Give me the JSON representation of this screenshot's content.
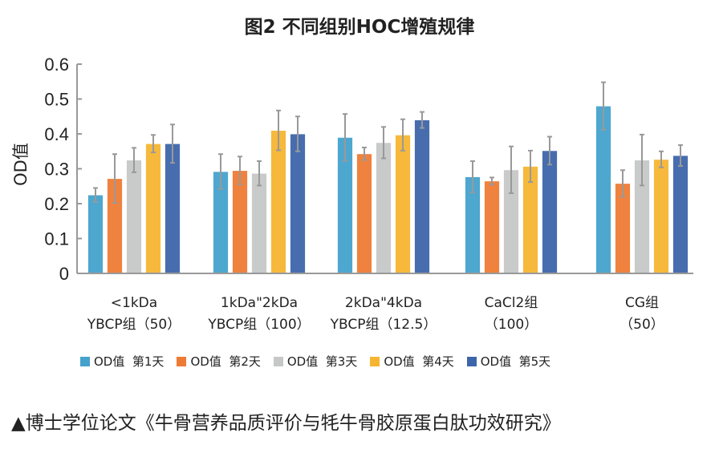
{
  "chart_data": {
    "type": "bar",
    "title": "图2 不同组别HOC增殖规律",
    "xlabel": "",
    "ylabel": "OD值",
    "ylim": [
      0,
      0.6
    ],
    "yticks": [
      "0",
      "0.1",
      "0.2",
      "0.3",
      "0.4",
      "0.5",
      "0.6"
    ],
    "grid": false,
    "legend_position": "bottom",
    "categories": [
      [
        "<1kDa",
        "YBCP组（50）"
      ],
      [
        "1kDa\"2kDa",
        "YBCP组（100）"
      ],
      [
        "2kDa\"4kDa",
        "YBCP组（12.5）"
      ],
      [
        "CaCl2组",
        "（100）"
      ],
      [
        "CG组",
        "（50）"
      ]
    ],
    "series": [
      {
        "name": "OD值  第1天",
        "color": "#44a2cc",
        "values": [
          0.225,
          0.292,
          0.39,
          0.277,
          0.48
        ],
        "errors": [
          0.02,
          0.05,
          0.067,
          0.045,
          0.068
        ]
      },
      {
        "name": "OD值  第2天",
        "color": "#ee7b35",
        "values": [
          0.272,
          0.295,
          0.343,
          0.265,
          0.258
        ],
        "errors": [
          0.07,
          0.04,
          0.018,
          0.01,
          0.038
        ]
      },
      {
        "name": "OD值  第3天",
        "color": "#c6c7c7",
        "values": [
          0.325,
          0.287,
          0.375,
          0.297,
          0.325
        ],
        "errors": [
          0.035,
          0.035,
          0.045,
          0.067,
          0.073
        ]
      },
      {
        "name": "OD值  第4天",
        "color": "#f6b531",
        "values": [
          0.372,
          0.41,
          0.397,
          0.307,
          0.327
        ],
        "errors": [
          0.025,
          0.057,
          0.045,
          0.045,
          0.023
        ]
      },
      {
        "name": "OD值  第5天",
        "color": "#3d65aa",
        "values": [
          0.372,
          0.4,
          0.44,
          0.352,
          0.338
        ],
        "errors": [
          0.055,
          0.05,
          0.023,
          0.04,
          0.03
        ]
      }
    ]
  },
  "caption": "▲博士学位论文《牛骨营养品质评价与牦牛骨胶原蛋白肽功效研究》"
}
